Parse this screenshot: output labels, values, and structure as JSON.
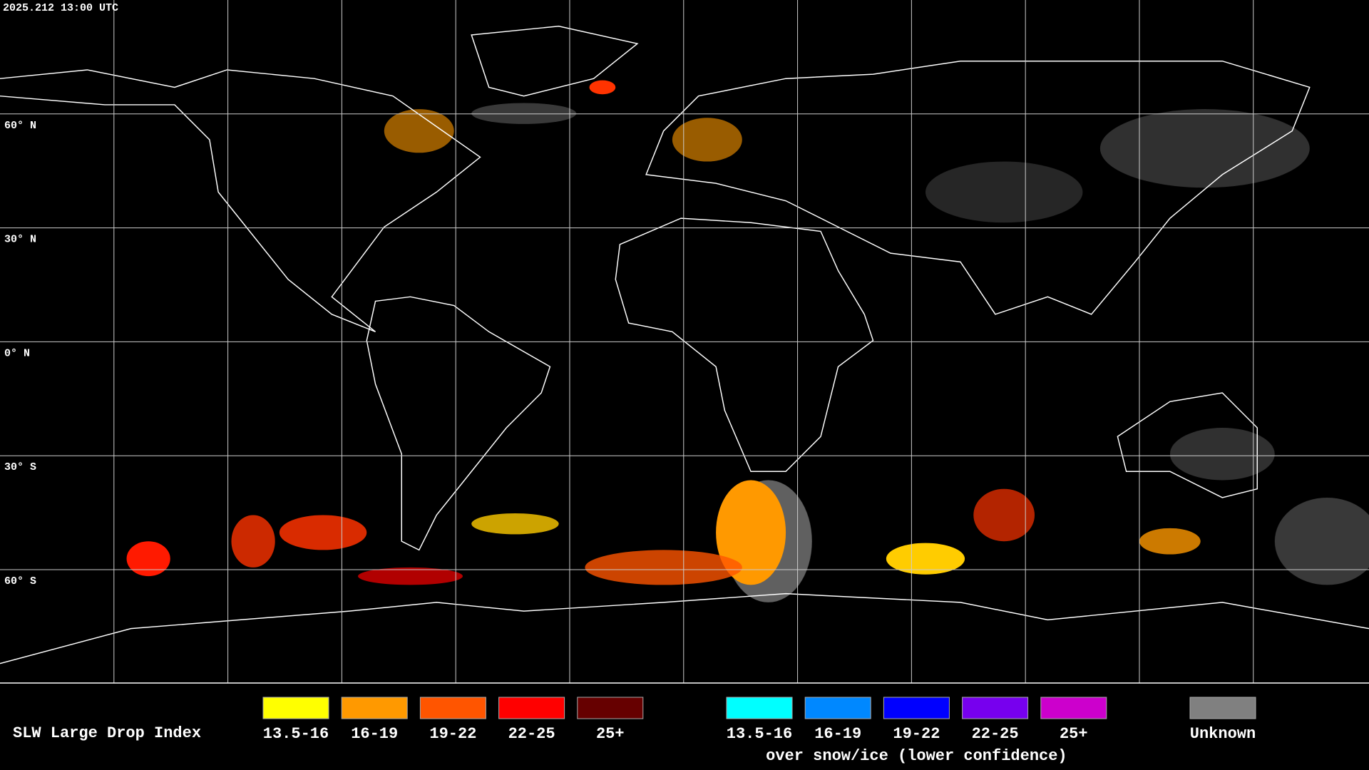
{
  "header": {
    "timestamp": "2025.212 13:00 UTC"
  },
  "lat_labels": [
    "60° N",
    "30° N",
    "0° N",
    "30° S",
    "60° S"
  ],
  "legend": {
    "title": "SLW Large Drop Index",
    "groups": [
      {
        "items": [
          {
            "label": "13.5-16",
            "color": "#ffff00"
          },
          {
            "label": "16-19",
            "color": "#ff9900"
          },
          {
            "label": "19-22",
            "color": "#ff5500"
          },
          {
            "label": "22-25",
            "color": "#ff0000"
          },
          {
            "label": "25+",
            "color": "#660000"
          }
        ]
      },
      {
        "items": [
          {
            "label": "13.5-16",
            "color": "#00ffff"
          },
          {
            "label": "16-19",
            "color": "#0088ff"
          },
          {
            "label": "19-22",
            "color": "#0000ff"
          },
          {
            "label": "22-25",
            "color": "#7700ee"
          },
          {
            "label": "25+",
            "color": "#cc00cc"
          }
        ],
        "caption": "over snow/ice (lower confidence)"
      },
      {
        "items": [
          {
            "label": "Unknown",
            "color": "#808080"
          }
        ]
      }
    ]
  }
}
